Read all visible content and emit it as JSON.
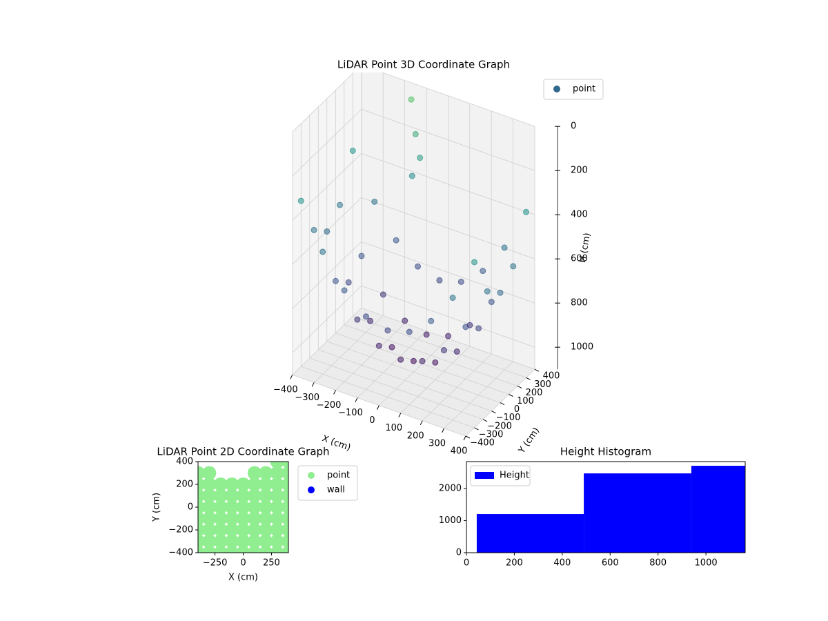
{
  "chart_data": [
    {
      "type": "scatter3d",
      "title": "LiDAR Point 3D Coordinate Graph",
      "xlabel": "X (cm)",
      "ylabel": "Y (cm)",
      "zlabel": "H (cm)",
      "series": [
        {
          "name": "point",
          "color": "#31688e",
          "x": [
            -400,
            -300,
            -200,
            -100,
            0,
            100,
            200,
            300,
            400,
            -400,
            -300,
            -200,
            -100,
            0,
            100,
            200,
            300,
            400,
            -400,
            -300,
            -200,
            -100,
            0,
            100,
            200,
            300,
            400,
            -400,
            -300,
            -200,
            -100,
            0,
            100,
            200,
            300,
            400,
            -400,
            -300,
            -200,
            -100,
            0,
            100,
            200,
            300,
            400,
            -150,
            -130,
            -110,
            -150
          ],
          "y": [
            -300,
            -300,
            -300,
            -300,
            -300,
            -300,
            -300,
            -300,
            -300,
            -150,
            -150,
            -150,
            -150,
            -150,
            -150,
            -150,
            -150,
            -150,
            0,
            0,
            0,
            0,
            0,
            0,
            0,
            0,
            0,
            150,
            150,
            150,
            150,
            150,
            150,
            150,
            150,
            150,
            300,
            300,
            300,
            300,
            300,
            300,
            300,
            300,
            300,
            350,
            350,
            350,
            360
          ],
          "z": [
            350,
            546,
            686,
            770,
            798,
            770,
            686,
            546,
            350,
            539,
            735,
            875,
            959,
            987,
            959,
            875,
            735,
            539,
            602,
            798,
            938,
            1022,
            1050,
            1022,
            938,
            798,
            602,
            539,
            735,
            875,
            959,
            987,
            959,
            875,
            735,
            539,
            350,
            546,
            686,
            770,
            798,
            770,
            686,
            546,
            350,
            50,
            200,
            300,
            400
          ]
        }
      ],
      "colormap": "viridis",
      "xlim": [
        -400,
        400
      ],
      "ylim": [
        -400,
        400
      ],
      "zlim": [
        0,
        1100
      ],
      "z_inverted": true,
      "xticks": [
        {
          "value": -400,
          "label": "−400"
        },
        {
          "value": -300,
          "label": "−300"
        },
        {
          "value": -200,
          "label": "−200"
        },
        {
          "value": -100,
          "label": "−100"
        },
        0,
        100,
        200,
        300,
        400
      ],
      "yticks": [
        {
          "value": -400,
          "label": "−400"
        },
        {
          "value": -300,
          "label": "−300"
        },
        {
          "value": -200,
          "label": "−200"
        },
        {
          "value": -100,
          "label": "−100"
        },
        0,
        100,
        200,
        300,
        400
      ],
      "zticks": [
        0,
        200,
        400,
        600,
        800,
        1000
      ],
      "grid": true,
      "legend": "upper right"
    },
    {
      "type": "scatter",
      "title": "LiDAR Point 2D Coordinate Graph",
      "xlabel": "X (cm)",
      "ylabel": "Y (cm)",
      "series": [
        {
          "name": "point",
          "color": "#90ee90",
          "x": [
            -400,
            -300,
            -200,
            -100,
            0,
            100,
            200,
            300,
            400,
            -400,
            -300,
            -200,
            -100,
            0,
            100,
            200,
            300,
            400,
            -400,
            -300,
            -200,
            -100,
            0,
            100,
            200,
            300,
            400,
            -400,
            -300,
            -200,
            -100,
            0,
            100,
            200,
            300,
            400,
            -400,
            -300,
            -200,
            -100,
            0,
            100,
            200,
            300,
            400,
            -400,
            -300,
            -200,
            -100,
            0,
            100,
            200,
            300,
            400,
            -400,
            -300,
            -200,
            -100,
            0,
            100,
            200,
            300,
            400,
            -400,
            -300,
            100,
            200,
            300,
            400,
            300,
            400
          ],
          "y": [
            -400,
            -400,
            -400,
            -400,
            -400,
            -400,
            -400,
            -400,
            -400,
            -300,
            -300,
            -300,
            -300,
            -300,
            -300,
            -300,
            -300,
            -300,
            -200,
            -200,
            -200,
            -200,
            -200,
            -200,
            -200,
            -200,
            -200,
            -100,
            -100,
            -100,
            -100,
            -100,
            -100,
            -100,
            -100,
            -100,
            0,
            0,
            0,
            0,
            0,
            0,
            0,
            0,
            0,
            100,
            100,
            100,
            100,
            100,
            100,
            100,
            100,
            100,
            200,
            200,
            200,
            200,
            200,
            200,
            200,
            200,
            200,
            300,
            300,
            300,
            300,
            300,
            300,
            400,
            400
          ]
        },
        {
          "name": "wall",
          "color": "#0000ff",
          "x": [],
          "y": []
        }
      ],
      "xlim": [
        -400,
        400
      ],
      "ylim": [
        -400,
        400
      ],
      "xticks": [
        {
          "value": -250,
          "label": "−250"
        },
        0,
        250
      ],
      "yticks": [
        {
          "value": -400,
          "label": "−400"
        },
        {
          "value": -200,
          "label": "−200"
        },
        0,
        200,
        400
      ],
      "legend": "outside upper right"
    },
    {
      "type": "histogram",
      "title": "Height Histogram",
      "bins": [
        43,
        490,
        939,
        1164
      ],
      "series": [
        {
          "name": "Height",
          "color": "#0000ff",
          "values": [
            1204,
            2473,
            2710
          ]
        }
      ],
      "xlim": [
        0,
        1164
      ],
      "ylim": [
        0,
        2840
      ],
      "xticks": [
        0,
        200,
        400,
        600,
        800,
        1000
      ],
      "yticks": [
        0,
        1000,
        2000
      ],
      "legend": "upper left"
    }
  ]
}
